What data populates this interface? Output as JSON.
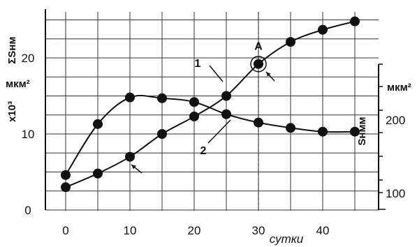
{
  "chart_data": {
    "type": "line",
    "x_ticks": [
      0,
      10,
      20,
      30,
      40
    ],
    "x_unit_label": "сутки",
    "xlim": [
      -2,
      46
    ],
    "y_left": {
      "ticks": [
        0,
        10,
        20
      ],
      "ylim": [
        0,
        26
      ],
      "label": "ΣSнм",
      "unit": "мкм²",
      "scale_label": "x10³"
    },
    "y_right": {
      "ticks": [
        100,
        200
      ],
      "label": "Sнмм",
      "unit": "мкм²"
    },
    "series": [
      {
        "name": "1",
        "x": [
          0,
          5,
          10,
          15,
          20,
          25,
          30,
          35,
          40,
          45
        ],
        "y": [
          3.0,
          4.8,
          7.0,
          10.0,
          12.3,
          15.0,
          19.2,
          22.1,
          23.7,
          24.8
        ]
      },
      {
        "name": "2",
        "x": [
          0,
          5,
          10,
          15,
          20,
          25,
          30,
          35,
          40,
          45
        ],
        "y": [
          4.6,
          11.3,
          14.8,
          14.7,
          14.2,
          12.6,
          11.5,
          10.8,
          10.3,
          10.3
        ]
      }
    ],
    "annotations": {
      "point_label": "A",
      "point_at": {
        "series": "1",
        "x": 30
      },
      "vline_x": 30
    },
    "grid": true
  }
}
